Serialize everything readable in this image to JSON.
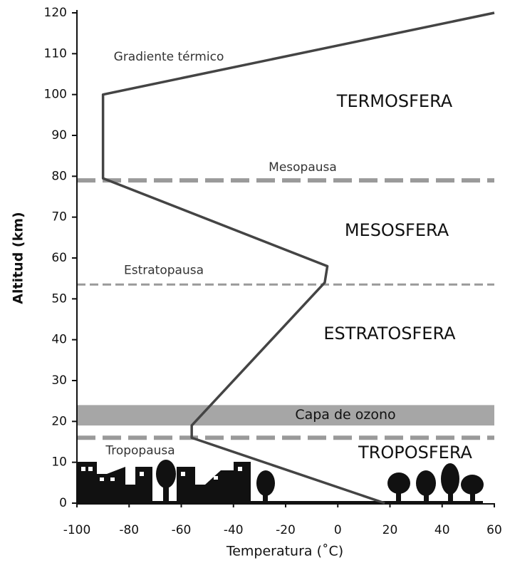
{
  "chart_data": {
    "type": "line",
    "xlabel": "Temperatura (˚C)",
    "ylabel": "Altitud (km)",
    "x": [
      18,
      -56,
      -56,
      -5,
      -4,
      -90,
      -90,
      60
    ],
    "values": [
      0,
      16,
      19,
      54,
      58,
      79.5,
      100,
      120
    ],
    "color": "#444444",
    "xlim": [
      -100,
      60
    ],
    "xticks": [
      -100,
      -80,
      -60,
      -40,
      -20,
      0,
      20,
      40,
      60
    ],
    "ylim": [
      0,
      120
    ],
    "yticks": [
      0,
      10,
      20,
      30,
      40,
      50,
      60,
      70,
      80,
      90,
      100,
      110,
      120
    ],
    "boundaries": [
      {
        "label": "Mesopausa",
        "y": 79,
        "dash": "thick"
      },
      {
        "label": "Estratopausa",
        "y": 53.5,
        "dash": "thin"
      },
      {
        "label": "Tropopausa",
        "y": 16,
        "dash": "thick"
      }
    ],
    "band": {
      "label": "Capa de ozono",
      "y": [
        19,
        24
      ],
      "color": "#a6a6a6"
    },
    "labels": [
      "Gradiente térmico",
      "TERMOSFERA",
      "MESOSFERA",
      "ESTRATOSFERA",
      "TROPOSFERA"
    ]
  }
}
